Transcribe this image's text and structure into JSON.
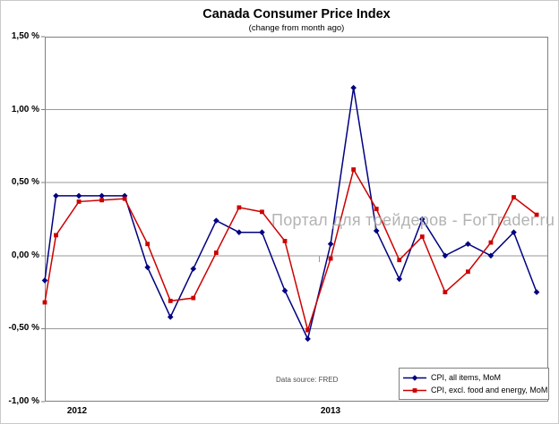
{
  "chart": {
    "title": "Canada Consumer Price Index",
    "subtitle": "(change from month ago)",
    "watermark": "Портал для трейдеров - ForTrader.ru",
    "data_source": "Data source: FRED",
    "x_axis_labels": [
      "2012",
      "2013"
    ],
    "y_axis_labels": [
      "1,50 %",
      "1,00 %",
      "0,50 %",
      "0,00 %",
      "-0,50 %",
      "-1,00 %"
    ],
    "colors": {
      "series_all_items": "#000080",
      "series_core": "#cc0000",
      "gridline": "#9a9a9a",
      "plot_border": "#7f7f7f",
      "watermark": "#a6a6a6"
    }
  },
  "chart_data": {
    "type": "line",
    "x": [
      "Dec 2011",
      "Jan 2012",
      "Feb 2012",
      "Mar 2012",
      "Apr 2012",
      "May 2012",
      "Jun 2012",
      "Jul 2012",
      "Aug 2012",
      "Sep 2012",
      "Oct 2012",
      "Nov 2012",
      "Dec 2012",
      "Jan 2013",
      "Feb 2013",
      "Mar 2013",
      "Apr 2013",
      "May 2013",
      "Jun 2013",
      "Jul 2013",
      "Aug 2013",
      "Sep 2013",
      "Oct 2013"
    ],
    "series": [
      {
        "name": "CPI, all items, MoM",
        "color": "#000080",
        "marker": "diamond",
        "values": [
          -0.17,
          0.41,
          0.41,
          0.41,
          0.41,
          -0.08,
          -0.42,
          -0.09,
          0.24,
          0.16,
          0.16,
          -0.24,
          -0.57,
          0.08,
          1.15,
          0.17,
          -0.16,
          0.25,
          0.0,
          0.08,
          0.0,
          0.16,
          -0.25
        ]
      },
      {
        "name": "CPI, excl. food and energy, MoM",
        "color": "#cc0000",
        "marker": "square",
        "values": [
          -0.32,
          0.14,
          0.37,
          0.38,
          0.39,
          0.08,
          -0.31,
          -0.29,
          0.02,
          0.33,
          0.3,
          0.1,
          -0.51,
          -0.02,
          0.59,
          0.32,
          -0.03,
          0.13,
          -0.25,
          -0.11,
          0.09,
          0.4,
          0.28
        ]
      }
    ],
    "title": "Canada Consumer Price Index",
    "subtitle": "(change from month ago)",
    "xlabel": "",
    "ylabel": "",
    "ylim": [
      -1.0,
      1.5
    ],
    "y_ticks": [
      1.5,
      1.0,
      0.5,
      0.0,
      -0.5,
      -1.0
    ],
    "x_year_ticks": [
      "2012",
      "2013"
    ],
    "grid": true,
    "legend_position": "bottom-right"
  }
}
